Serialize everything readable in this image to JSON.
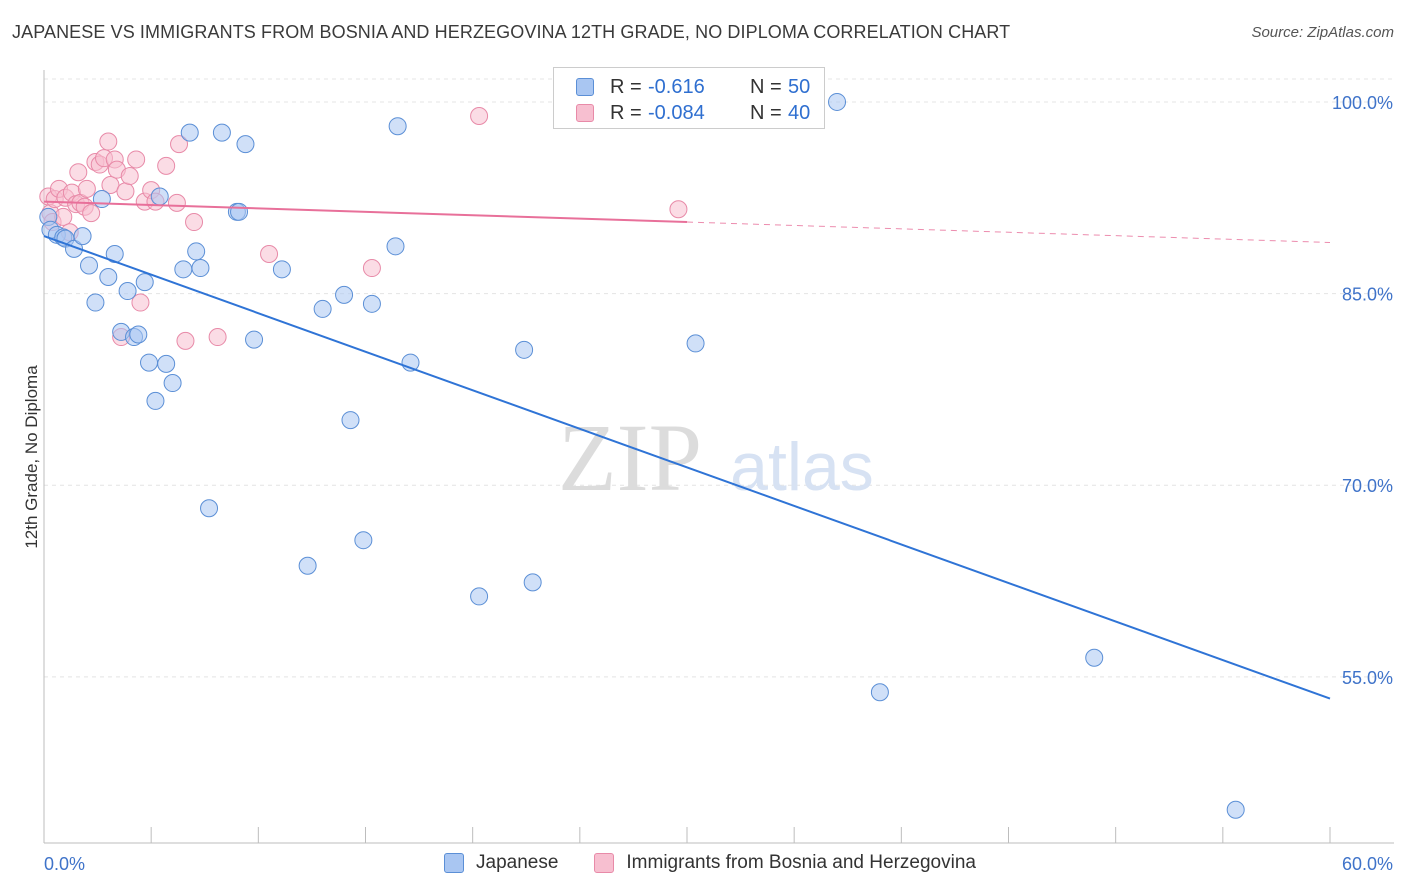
{
  "header": {
    "title": "JAPANESE VS IMMIGRANTS FROM BOSNIA AND HERZEGOVINA 12TH GRADE, NO DIPLOMA CORRELATION CHART",
    "source": "Source: ZipAtlas.com"
  },
  "colors": {
    "blue_fill": "#a9c6f2",
    "blue_stroke": "#5b8fd6",
    "blue_line": "#2f74d6",
    "pink_fill": "#f7bfd0",
    "pink_stroke": "#e88aa8",
    "pink_line": "#e8709a",
    "tick_label": "#3f73c9",
    "grid": "#e4e4e4"
  },
  "legend": {
    "rows": [
      {
        "r_label": "R =",
        "r_value": "-0.616",
        "n_label": "N =",
        "n_value": "50"
      },
      {
        "r_label": "R =",
        "r_value": "-0.084",
        "n_label": "N =",
        "n_value": "40"
      }
    ]
  },
  "bottom_legend": {
    "series1": "Japanese",
    "series2": "Immigrants from Bosnia and Herzegovina"
  },
  "watermark": {
    "zip": "ZIP",
    "atlas": "atlas"
  },
  "chart_data": {
    "type": "scatter",
    "title": "JAPANESE VS IMMIGRANTS FROM BOSNIA AND HERZEGOVINA 12TH GRADE, NO DIPLOMA CORRELATION CHART",
    "xlabel": "",
    "ylabel": "12th Grade, No Diploma",
    "xlim": [
      0,
      60
    ],
    "ylim": [
      42,
      102.5
    ],
    "x_tick_labels": [
      "0.0%",
      "60.0%"
    ],
    "y_ticks": [
      55,
      70,
      85,
      100
    ],
    "y_tick_labels": [
      "55.0%",
      "70.0%",
      "85.0%",
      "100.0%"
    ],
    "grid": true,
    "series": [
      {
        "name": "Japanese",
        "r": -0.616,
        "n": 50,
        "trend": {
          "x0": 0,
          "y0": 89.5,
          "x1": 60,
          "y1": 53.3
        },
        "points": [
          [
            0.2,
            91.0
          ],
          [
            0.3,
            90.0
          ],
          [
            0.6,
            89.6
          ],
          [
            0.9,
            89.4
          ],
          [
            1.0,
            89.3
          ],
          [
            1.4,
            88.5
          ],
          [
            1.8,
            89.5
          ],
          [
            2.1,
            87.2
          ],
          [
            2.4,
            84.3
          ],
          [
            2.7,
            92.4
          ],
          [
            3.0,
            86.3
          ],
          [
            3.3,
            88.1
          ],
          [
            3.6,
            82.0
          ],
          [
            3.9,
            85.2
          ],
          [
            4.2,
            81.6
          ],
          [
            4.4,
            81.8
          ],
          [
            4.7,
            85.9
          ],
          [
            4.9,
            79.6
          ],
          [
            5.2,
            76.6
          ],
          [
            5.4,
            92.6
          ],
          [
            5.7,
            79.5
          ],
          [
            6.0,
            78.0
          ],
          [
            6.5,
            86.9
          ],
          [
            6.8,
            97.6
          ],
          [
            7.1,
            88.3
          ],
          [
            7.3,
            87.0
          ],
          [
            7.7,
            68.2
          ],
          [
            8.3,
            97.6
          ],
          [
            9.0,
            91.4
          ],
          [
            9.1,
            91.4
          ],
          [
            9.4,
            96.7
          ],
          [
            9.8,
            81.4
          ],
          [
            11.1,
            86.9
          ],
          [
            12.3,
            63.7
          ],
          [
            13.0,
            83.8
          ],
          [
            14.0,
            84.9
          ],
          [
            14.3,
            75.1
          ],
          [
            14.9,
            65.7
          ],
          [
            15.3,
            84.2
          ],
          [
            16.5,
            98.1
          ],
          [
            16.4,
            88.7
          ],
          [
            17.1,
            79.6
          ],
          [
            20.3,
            61.3
          ],
          [
            22.8,
            62.4
          ],
          [
            22.4,
            80.6
          ],
          [
            30.4,
            81.1
          ],
          [
            37.0,
            100.0
          ],
          [
            39.0,
            53.8
          ],
          [
            49.0,
            56.5
          ],
          [
            55.6,
            44.6
          ]
        ]
      },
      {
        "name": "Immigrants from Bosnia and Herzegovina",
        "r": -0.084,
        "n": 40,
        "trend": {
          "x0": 0,
          "y0": 92.2,
          "x1": 30,
          "y1": 90.6,
          "dash_to_x": 60,
          "dash_to_y": 89.0
        },
        "points": [
          [
            0.2,
            92.6
          ],
          [
            0.3,
            91.3
          ],
          [
            0.4,
            90.6
          ],
          [
            0.5,
            92.4
          ],
          [
            0.7,
            93.2
          ],
          [
            0.9,
            91.0
          ],
          [
            1.0,
            92.5
          ],
          [
            1.2,
            89.8
          ],
          [
            1.3,
            92.9
          ],
          [
            1.5,
            92.0
          ],
          [
            1.6,
            94.5
          ],
          [
            1.7,
            92.1
          ],
          [
            1.9,
            91.8
          ],
          [
            2.0,
            93.2
          ],
          [
            2.2,
            91.3
          ],
          [
            2.4,
            95.3
          ],
          [
            2.6,
            95.1
          ],
          [
            2.8,
            95.6
          ],
          [
            3.0,
            96.9
          ],
          [
            3.1,
            93.5
          ],
          [
            3.3,
            95.5
          ],
          [
            3.4,
            94.7
          ],
          [
            3.6,
            81.6
          ],
          [
            3.8,
            93.0
          ],
          [
            4.0,
            94.2
          ],
          [
            4.3,
            95.5
          ],
          [
            4.5,
            84.3
          ],
          [
            4.7,
            92.2
          ],
          [
            5.0,
            93.1
          ],
          [
            5.2,
            92.2
          ],
          [
            5.7,
            95.0
          ],
          [
            6.2,
            92.1
          ],
          [
            6.3,
            96.7
          ],
          [
            6.6,
            81.3
          ],
          [
            7.0,
            90.6
          ],
          [
            8.1,
            81.6
          ],
          [
            10.5,
            88.1
          ],
          [
            15.3,
            87.0
          ],
          [
            20.3,
            98.9
          ],
          [
            29.6,
            91.6
          ]
        ]
      }
    ]
  }
}
